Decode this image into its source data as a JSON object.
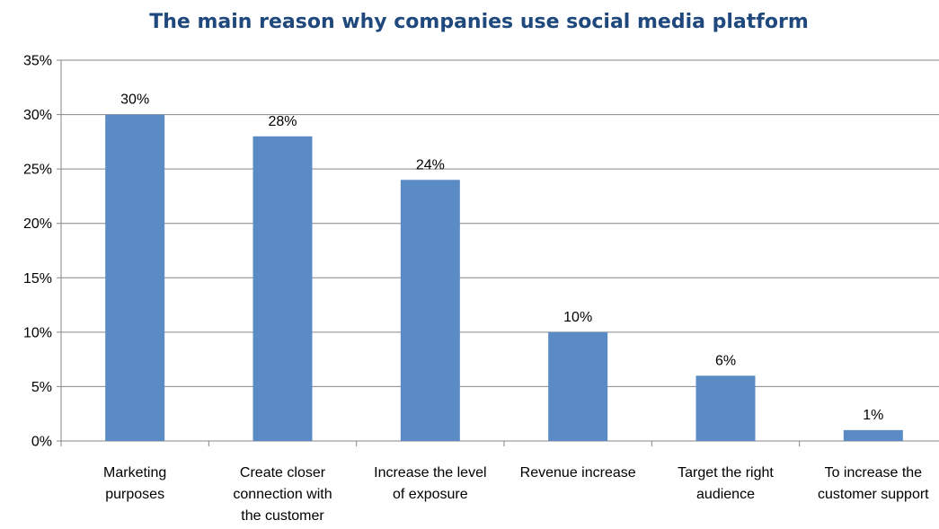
{
  "chart_data": {
    "type": "bar",
    "title": "The main reason why companies use social media platform",
    "categories": [
      [
        "Marketing",
        "purposes"
      ],
      [
        "Create closer",
        "connection with",
        "the customer"
      ],
      [
        "Increase the level",
        "of exposure"
      ],
      [
        "Revenue increase"
      ],
      [
        "Target the right",
        "audience"
      ],
      [
        "To increase the",
        "customer support"
      ]
    ],
    "values": [
      30,
      28,
      24,
      10,
      6,
      1
    ],
    "value_labels": [
      "30%",
      "28%",
      "24%",
      "10%",
      "6%",
      "1%"
    ],
    "ylim": [
      0,
      35
    ],
    "yticks": [
      0,
      5,
      10,
      15,
      20,
      25,
      30,
      35
    ],
    "ytick_labels": [
      "0%",
      "5%",
      "10%",
      "15%",
      "20%",
      "25%",
      "30%",
      "35%"
    ],
    "grid": true,
    "legend": false,
    "bar_color": "#5B8BC4"
  }
}
